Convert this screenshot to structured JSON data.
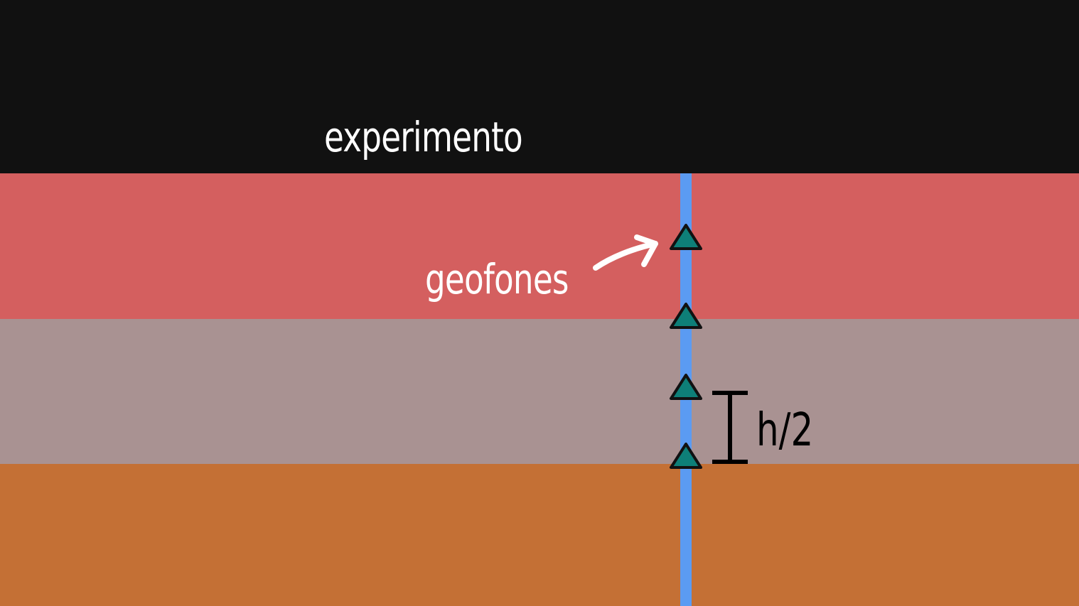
{
  "title": "experimento",
  "geophone_label": "geofones",
  "spacing_label": "h/2",
  "geophone_count": 4,
  "colors": {
    "sky": "#111111",
    "layer_top": "#D45F5F",
    "layer_middle": "#A99292",
    "layer_bottom": "#C47035",
    "borehole": "#5B9BF2",
    "geophone_fill": "#0E7F78",
    "geophone_outline": "#111111",
    "text_light": "#FFFFFF",
    "text_dark": "#000000"
  },
  "icons": {
    "geophone": "triangle-icon",
    "pointer": "curved-arrow-icon",
    "dimension": "i-beam-dimension-icon"
  }
}
